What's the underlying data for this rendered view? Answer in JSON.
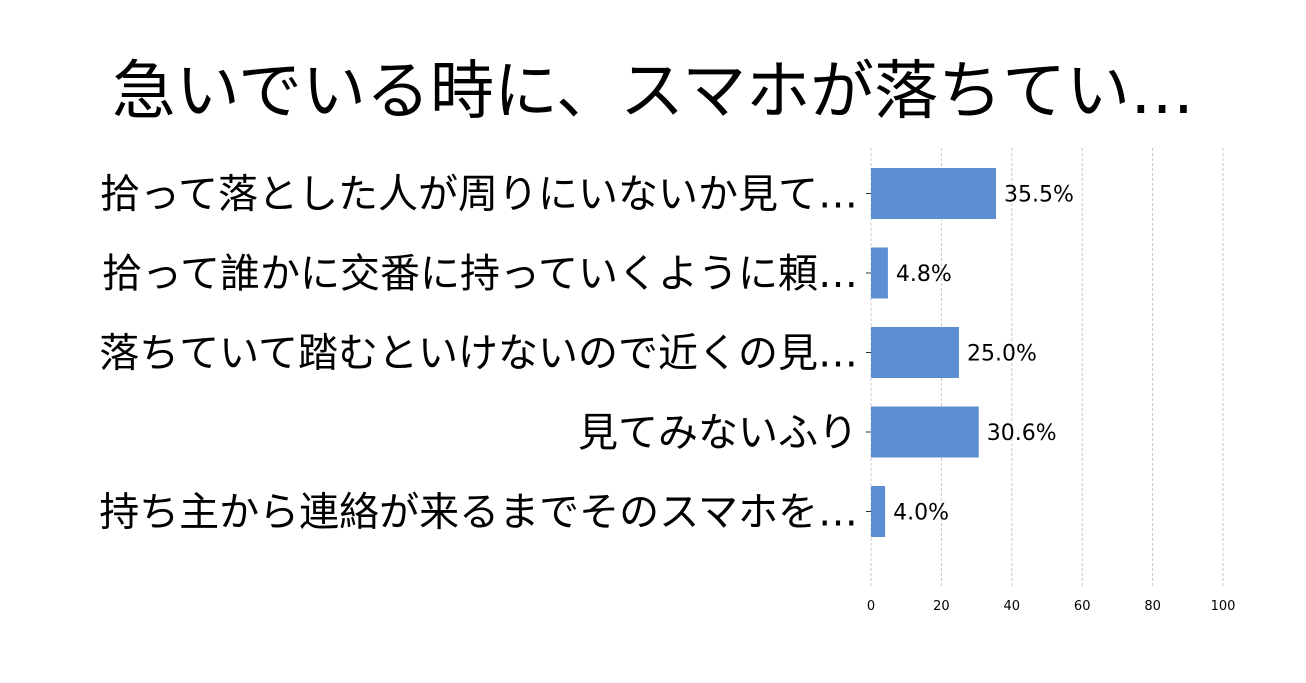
{
  "chart_data": {
    "type": "bar",
    "orientation": "horizontal",
    "title": "急いでいる時に、スマホが落ちてい…",
    "categories": [
      "拾って落とした人が周りにいないか見て…",
      "拾って誰かに交番に持っていくように頼…",
      "落ちていて踏むといけないので近くの見…",
      "見てみないふり",
      "持ち主から連絡が来るまでそのスマホを…"
    ],
    "values": [
      35.5,
      4.8,
      25.0,
      30.6,
      4.0
    ],
    "value_labels": [
      "35.5%",
      "4.8%",
      "25.0%",
      "30.6%",
      "4.0%"
    ],
    "xlim": [
      0,
      100
    ],
    "xticks": [
      0,
      20,
      40,
      60,
      80,
      100
    ],
    "xtick_labels": [
      "0",
      "20",
      "40",
      "60",
      "80",
      "100"
    ],
    "grid": "vertical dashed",
    "bar_color": "#5b8fd2"
  }
}
